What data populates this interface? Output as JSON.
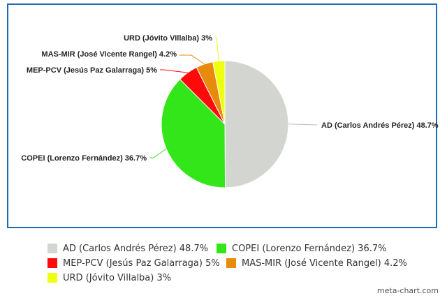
{
  "chart_data": {
    "type": "pie",
    "title": "",
    "slices": [
      {
        "label": "AD (Carlos Andrés Pérez)",
        "value": 48.7,
        "color": "#d3d6d0",
        "display": "AD (Carlos Andrés Pérez) 48.7%"
      },
      {
        "label": "COPEI (Lorenzo Fernández)",
        "value": 36.7,
        "color": "#33e61a",
        "display": "COPEI (Lorenzo Fernández) 36.7%"
      },
      {
        "label": "MEP-PCV (Jesús Paz Galarraga)",
        "value": 5,
        "color": "#ff0a0a",
        "display": "MEP-PCV (Jesús Paz Galarraga) 5%"
      },
      {
        "label": "MAS-MIR (José Vicente Rangel)",
        "value": 4.2,
        "color": "#e88a0b",
        "display": "MAS-MIR (José Vicente Rangel) 4.2%"
      },
      {
        "label": "URD (Jóvito Villalba)",
        "value": 3,
        "color": "#eeff12",
        "display": "URD (Jóvito Villalba) 3%"
      }
    ],
    "legend_placement": "bottom",
    "frame_color": "#1f6bb0"
  },
  "legend": [
    {
      "label": "AD (Carlos Andrés Pérez) 48.7%",
      "color": "#d3d6d0"
    },
    {
      "label": "COPEI (Lorenzo Fernández) 36.7%",
      "color": "#33e61a"
    },
    {
      "label": "MEP-PCV (Jesús Paz Galarraga) 5%",
      "color": "#ff0a0a"
    },
    {
      "label": "MAS-MIR (José Vicente Rangel) 4.2%",
      "color": "#e88a0b"
    },
    {
      "label": "URD (Jóvito Villalba) 3%",
      "color": "#eeff12"
    }
  ],
  "footer": {
    "credit": "meta-chart.com"
  }
}
